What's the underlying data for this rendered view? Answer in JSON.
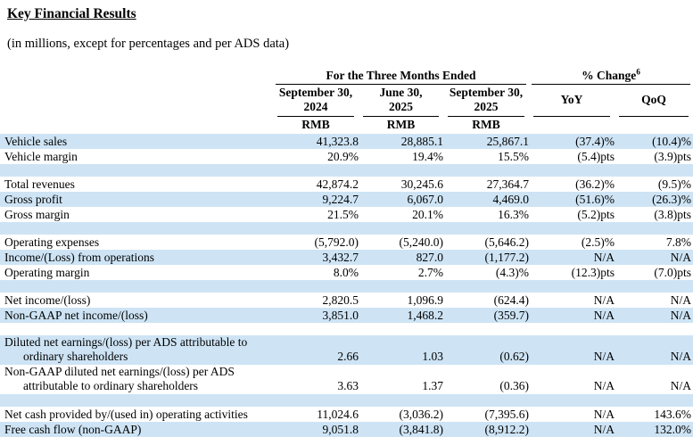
{
  "page": {
    "title": "Key Financial Results",
    "subtitle": "(in millions, except for percentages and per ADS data)"
  },
  "header": {
    "group_period": "For the Three Months Ended",
    "group_change": "% Change",
    "group_change_sup": "6",
    "months": [
      {
        "line1": "September 30,",
        "line2": "2024"
      },
      {
        "line1": "June 30,",
        "line2": "2025"
      },
      {
        "line1": "September 30,",
        "line2": "2025"
      }
    ],
    "change_cols": [
      "YoY",
      "QoQ"
    ],
    "currency": "RMB"
  },
  "colors": {
    "row_highlight": "#cee4f5",
    "text": "#000000"
  },
  "table": {
    "rows": [
      {
        "label": "Vehicle sales",
        "values": [
          "41,323.8",
          "28,885.1",
          "25,867.1",
          "(37.4)%",
          "(10.4)%"
        ]
      },
      {
        "label": "Vehicle margin",
        "values": [
          "20.9%",
          "19.4%",
          "15.5%",
          "(5.4)pts",
          "(3.9)pts"
        ]
      },
      {
        "empty": true
      },
      {
        "label": "Total revenues",
        "values": [
          "42,874.2",
          "30,245.6",
          "27,364.7",
          "(36.2)%",
          "(9.5)%"
        ]
      },
      {
        "label": "Gross profit",
        "values": [
          "9,224.7",
          "6,067.0",
          "4,469.0",
          "(51.6)%",
          "(26.3)%"
        ]
      },
      {
        "label": "Gross margin",
        "values": [
          "21.5%",
          "20.1%",
          "16.3%",
          "(5.2)pts",
          "(3.8)pts"
        ]
      },
      {
        "empty": true
      },
      {
        "label": "Operating expenses",
        "values": [
          "(5,792.0)",
          "(5,240.0)",
          "(5,646.2)",
          "(2.5)%",
          "7.8%"
        ]
      },
      {
        "label": "Income/(Loss) from operations",
        "values": [
          "3,432.7",
          "827.0",
          "(1,177.2)",
          "N/A",
          "N/A"
        ]
      },
      {
        "label": "Operating margin",
        "values": [
          "8.0%",
          "2.7%",
          "(4.3)%",
          "(12.3)pts",
          "(7.0)pts"
        ]
      },
      {
        "empty": true
      },
      {
        "label": "Net income/(loss)",
        "values": [
          "2,820.5",
          "1,096.9",
          "(624.4)",
          "N/A",
          "N/A"
        ]
      },
      {
        "label": "Non-GAAP net income/(loss)",
        "values": [
          "3,851.0",
          "1,468.2",
          "(359.7)",
          "N/A",
          "N/A"
        ]
      },
      {
        "empty": true
      },
      {
        "two_line": true,
        "label_line1": "Diluted net earnings/(loss) per ADS attributable to",
        "label_line2": "ordinary shareholders",
        "values": [
          "2.66",
          "1.03",
          "(0.62)",
          "N/A",
          "N/A"
        ]
      },
      {
        "two_line": true,
        "label_line1": "Non-GAAP diluted net earnings/(loss) per ADS",
        "label_line2": "attributable to ordinary shareholders",
        "values": [
          "3.63",
          "1.37",
          "(0.36)",
          "N/A",
          "N/A"
        ]
      },
      {
        "empty": true
      },
      {
        "label": "Net cash provided by/(used in) operating activities",
        "values": [
          "11,024.6",
          "(3,036.2)",
          "(7,395.6)",
          "N/A",
          "143.6%"
        ]
      },
      {
        "label": "Free cash flow (non-GAAP)",
        "values": [
          "9,051.8",
          "(3,841.8)",
          "(8,912.2)",
          "N/A",
          "132.0%"
        ]
      }
    ]
  }
}
